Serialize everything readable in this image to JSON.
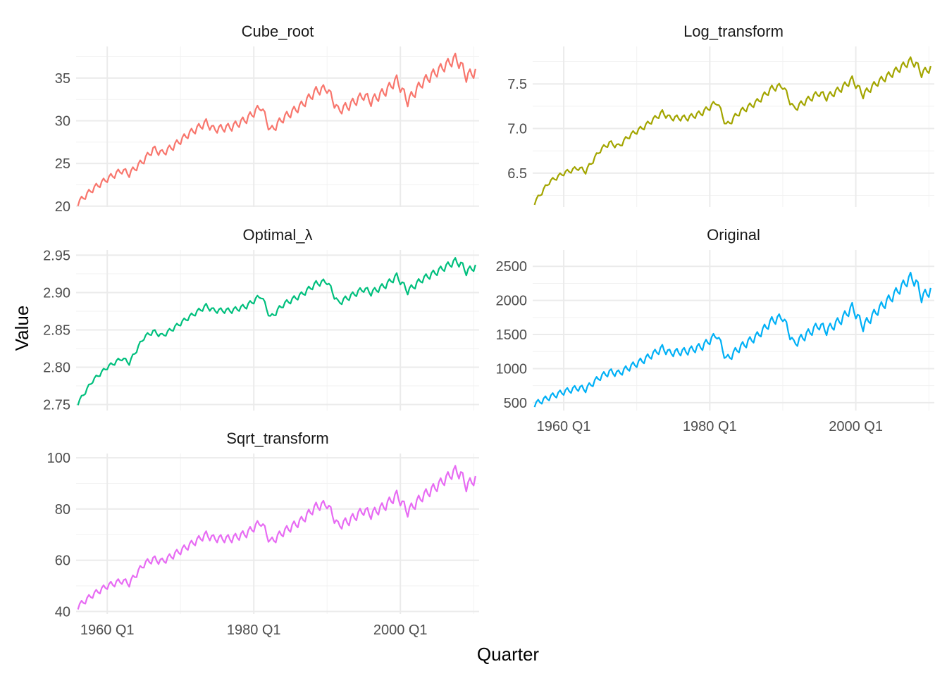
{
  "figure": {
    "xlabel": "Quarter",
    "ylabel": "Value"
  },
  "chart_data": [
    {
      "type": "line",
      "title": "Cube_root",
      "color": "#F8766D",
      "series_kind": "cube_root",
      "x_range": [
        "1956 Q1",
        "2010 Q2"
      ],
      "x_ticks": [
        "1960 Q1",
        "1980 Q1",
        "2000 Q1"
      ],
      "x_tick_labels_visible": false,
      "y_ticks": [
        20,
        25,
        30,
        35
      ],
      "ylim": [
        19.9,
        38.7
      ],
      "anchors": [
        [
          1956,
          20.4
        ],
        [
          1958,
          22.0
        ],
        [
          1960,
          23.2
        ],
        [
          1962,
          24.2
        ],
        [
          1963,
          23.8
        ],
        [
          1965,
          25.4
        ],
        [
          1966.3,
          26.7
        ],
        [
          1967.5,
          26.2
        ],
        [
          1969,
          27.0
        ],
        [
          1971,
          28.4
        ],
        [
          1973.5,
          29.8
        ],
        [
          1974.5,
          29.0
        ],
        [
          1977,
          29.3
        ],
        [
          1979,
          30.2
        ],
        [
          1981,
          31.7
        ],
        [
          1982.3,
          28.8
        ],
        [
          1984,
          30.3
        ],
        [
          1986.5,
          31.8
        ],
        [
          1988.5,
          33.5
        ],
        [
          1990,
          33.8
        ],
        [
          1991.5,
          31.2
        ],
        [
          1993,
          31.8
        ],
        [
          1995,
          33.0
        ],
        [
          1996,
          32.3
        ],
        [
          1998,
          33.5
        ],
        [
          1999.5,
          34.8
        ],
        [
          2001,
          32.3
        ],
        [
          2003,
          34.5
        ],
        [
          2005,
          35.8
        ],
        [
          2007.5,
          37.3
        ],
        [
          2008.3,
          36.5
        ],
        [
          2009,
          35.2
        ],
        [
          2010.25,
          35.8
        ]
      ],
      "seasonal_amplitude": 0.8
    },
    {
      "type": "line",
      "title": "Log_transform",
      "color": "#A3A500",
      "series_kind": "log",
      "x_range": [
        "1956 Q1",
        "2010 Q2"
      ],
      "x_ticks": [
        "1960 Q1",
        "1980 Q1",
        "2000 Q1"
      ],
      "x_tick_labels_visible": false,
      "y_ticks": [
        6.5,
        7.0,
        7.5
      ],
      "ylim": [
        6.12,
        7.92
      ],
      "anchors": [
        [
          1956,
          6.17
        ],
        [
          1958,
          6.4
        ],
        [
          1960,
          6.5
        ],
        [
          1962,
          6.56
        ],
        [
          1963,
          6.52
        ],
        [
          1965,
          6.76
        ],
        [
          1966.3,
          6.84
        ],
        [
          1967.5,
          6.8
        ],
        [
          1969,
          6.92
        ],
        [
          1971,
          7.02
        ],
        [
          1973.5,
          7.18
        ],
        [
          1974.5,
          7.12
        ],
        [
          1977,
          7.12
        ],
        [
          1979,
          7.18
        ],
        [
          1981,
          7.3
        ],
        [
          1982.3,
          7.03
        ],
        [
          1984,
          7.18
        ],
        [
          1986.5,
          7.3
        ],
        [
          1988.5,
          7.45
        ],
        [
          1990,
          7.48
        ],
        [
          1991.5,
          7.22
        ],
        [
          1993,
          7.3
        ],
        [
          1995,
          7.4
        ],
        [
          1996,
          7.35
        ],
        [
          1998,
          7.45
        ],
        [
          1999.5,
          7.55
        ],
        [
          2001,
          7.38
        ],
        [
          2003,
          7.52
        ],
        [
          2005,
          7.62
        ],
        [
          2007.5,
          7.76
        ],
        [
          2008.3,
          7.72
        ],
        [
          2009,
          7.62
        ],
        [
          2010.25,
          7.68
        ]
      ],
      "seasonal_amplitude": 0.055
    },
    {
      "type": "line",
      "title": "Optimal_λ",
      "color": "#00BF7D",
      "series_kind": "boxcox",
      "x_range": [
        "1956 Q1",
        "2010 Q2"
      ],
      "x_ticks": [
        "1960 Q1",
        "1980 Q1",
        "2000 Q1"
      ],
      "x_tick_labels_visible": false,
      "y_ticks": [
        2.75,
        2.8,
        2.85,
        2.9,
        2.95
      ],
      "ylim": [
        2.742,
        2.957
      ],
      "anchors": [
        [
          1956,
          2.752
        ],
        [
          1958,
          2.782
        ],
        [
          1960,
          2.8
        ],
        [
          1962,
          2.812
        ],
        [
          1963,
          2.806
        ],
        [
          1965,
          2.84
        ],
        [
          1966.3,
          2.848
        ],
        [
          1967.5,
          2.842
        ],
        [
          1969,
          2.852
        ],
        [
          1971,
          2.866
        ],
        [
          1973.5,
          2.882
        ],
        [
          1974.5,
          2.876
        ],
        [
          1977,
          2.876
        ],
        [
          1979,
          2.882
        ],
        [
          1981,
          2.896
        ],
        [
          1982.3,
          2.866
        ],
        [
          1984,
          2.884
        ],
        [
          1986.5,
          2.897
        ],
        [
          1988.5,
          2.912
        ],
        [
          1990,
          2.915
        ],
        [
          1991.5,
          2.886
        ],
        [
          1993,
          2.894
        ],
        [
          1995,
          2.905
        ],
        [
          1996,
          2.9
        ],
        [
          1998,
          2.91
        ],
        [
          1999.5,
          2.922
        ],
        [
          2001,
          2.902
        ],
        [
          2003,
          2.918
        ],
        [
          2005,
          2.928
        ],
        [
          2007.5,
          2.942
        ],
        [
          2008.3,
          2.938
        ],
        [
          2009,
          2.928
        ],
        [
          2010.25,
          2.935
        ]
      ],
      "seasonal_amplitude": 0.006
    },
    {
      "type": "line",
      "title": "Original",
      "color": "#00B0F6",
      "series_kind": "original",
      "x_range": [
        "1956 Q1",
        "2010 Q2"
      ],
      "x_ticks": [
        "1960 Q1",
        "1980 Q1",
        "2000 Q1"
      ],
      "x_tick_labels_visible": true,
      "y_ticks": [
        500,
        1000,
        1500,
        2000,
        2500
      ],
      "ylim": [
        385,
        2740
      ],
      "anchors": [
        [
          1956,
          480
        ],
        [
          1958,
          580
        ],
        [
          1960,
          660
        ],
        [
          1962,
          720
        ],
        [
          1963,
          700
        ],
        [
          1965,
          880
        ],
        [
          1966.3,
          950
        ],
        [
          1967.5,
          930
        ],
        [
          1969,
          1020
        ],
        [
          1971,
          1130
        ],
        [
          1973.5,
          1300
        ],
        [
          1974.5,
          1230
        ],
        [
          1977,
          1260
        ],
        [
          1979,
          1330
        ],
        [
          1981,
          1500
        ],
        [
          1982.3,
          1130
        ],
        [
          1984,
          1300
        ],
        [
          1986.5,
          1480
        ],
        [
          1988.5,
          1700
        ],
        [
          1990,
          1760
        ],
        [
          1991.5,
          1360
        ],
        [
          1993,
          1480
        ],
        [
          1995,
          1640
        ],
        [
          1996,
          1560
        ],
        [
          1998,
          1720
        ],
        [
          1999.5,
          1900
        ],
        [
          2001,
          1620
        ],
        [
          2003,
          1860
        ],
        [
          2005,
          2060
        ],
        [
          2007.5,
          2340
        ],
        [
          2008.3,
          2260
        ],
        [
          2009,
          2050
        ],
        [
          2010.25,
          2150
        ]
      ],
      "seasonal_amplitude": 95
    },
    {
      "type": "line",
      "title": "Sqrt_transform",
      "color": "#E76BF3",
      "series_kind": "sqrt",
      "x_range": [
        "1956 Q1",
        "2010 Q2"
      ],
      "x_ticks": [
        "1960 Q1",
        "1980 Q1",
        "2000 Q1"
      ],
      "x_tick_labels_visible": true,
      "y_ticks": [
        40,
        60,
        80,
        100
      ],
      "ylim": [
        39,
        101.7
      ],
      "anchors": [
        [
          1956,
          42
        ],
        [
          1958,
          46.5
        ],
        [
          1960,
          50
        ],
        [
          1962,
          52
        ],
        [
          1963,
          51
        ],
        [
          1965,
          58.5
        ],
        [
          1966.3,
          60.5
        ],
        [
          1967.5,
          59.5
        ],
        [
          1969,
          62
        ],
        [
          1971,
          65.5
        ],
        [
          1973.5,
          70
        ],
        [
          1974.5,
          68.5
        ],
        [
          1977,
          68.5
        ],
        [
          1979,
          70.5
        ],
        [
          1981,
          75
        ],
        [
          1982.3,
          67
        ],
        [
          1984,
          71
        ],
        [
          1986.5,
          75.5
        ],
        [
          1988.5,
          81
        ],
        [
          1990,
          82
        ],
        [
          1991.5,
          73.5
        ],
        [
          1993,
          75.5
        ],
        [
          1995,
          79.5
        ],
        [
          1996,
          78
        ],
        [
          1998,
          81.5
        ],
        [
          1999.5,
          85.5
        ],
        [
          2001,
          79
        ],
        [
          2003,
          85
        ],
        [
          2005,
          89
        ],
        [
          2007.5,
          95
        ],
        [
          2008.3,
          93.5
        ],
        [
          2009,
          89
        ],
        [
          2010.25,
          92
        ]
      ],
      "seasonal_amplitude": 2.6
    }
  ]
}
